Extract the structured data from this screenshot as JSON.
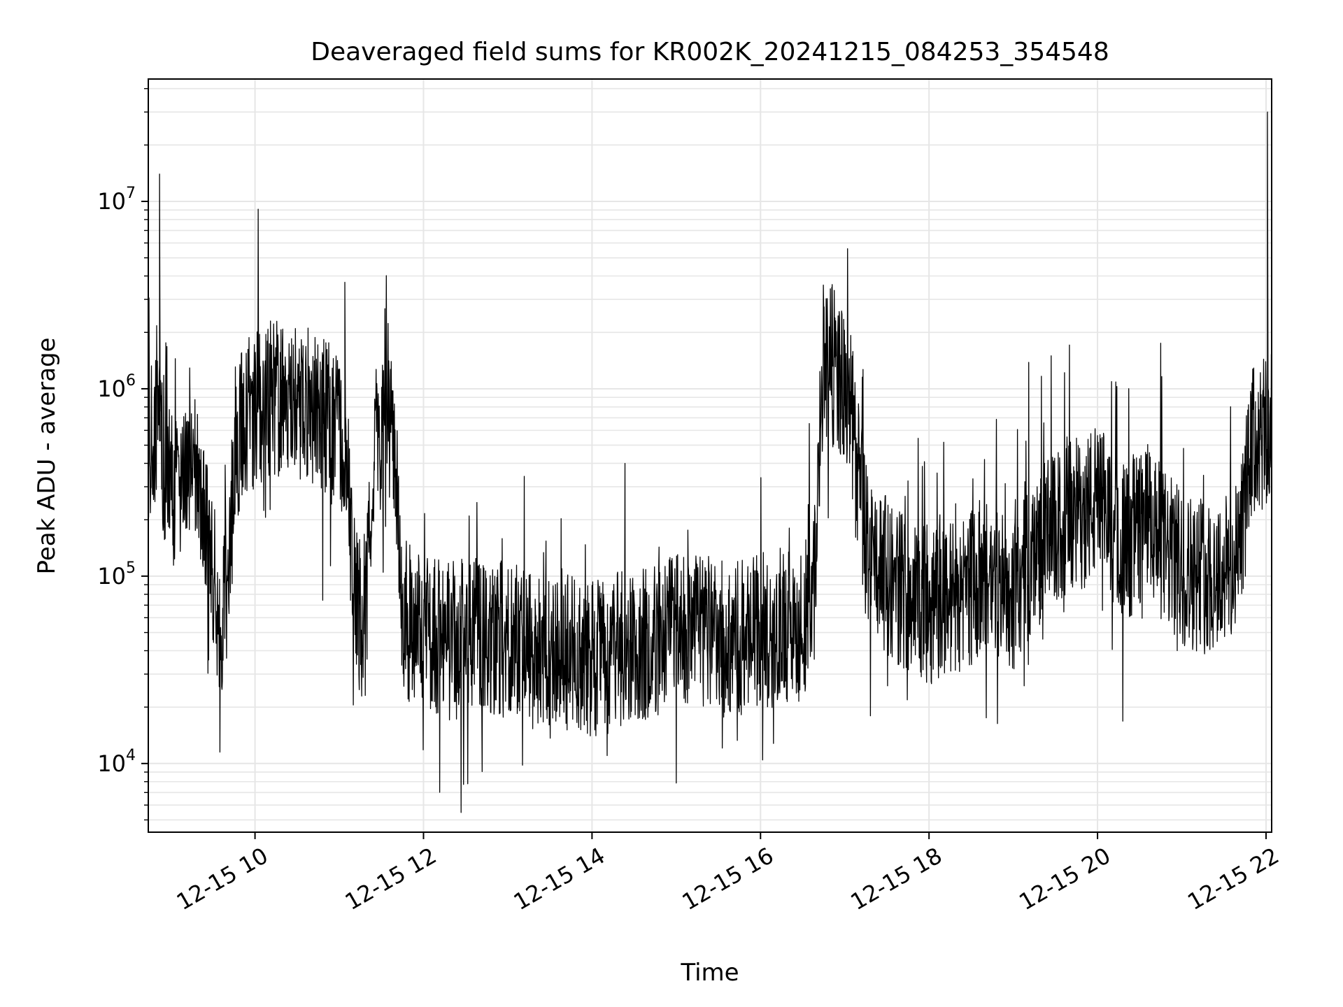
{
  "chart_data": {
    "type": "line",
    "title": "Deaveraged field sums for KR002K_20241215_084253_354548",
    "xlabel": "Time",
    "ylabel": "Peak ADU - average",
    "y_scale": "log",
    "xlim": [
      "2024-12-15 08:44",
      "2024-12-15 22:04"
    ],
    "ylim": [
      4300,
      45000000
    ],
    "x_ticks": [
      {
        "value": "2024-12-15 10:00",
        "label": "12-15 10"
      },
      {
        "value": "2024-12-15 12:00",
        "label": "12-15 12"
      },
      {
        "value": "2024-12-15 14:00",
        "label": "12-15 14"
      },
      {
        "value": "2024-12-15 16:00",
        "label": "12-15 16"
      },
      {
        "value": "2024-12-15 18:00",
        "label": "12-15 18"
      },
      {
        "value": "2024-12-15 20:00",
        "label": "12-15 20"
      },
      {
        "value": "2024-12-15 22:00",
        "label": "12-15 22"
      }
    ],
    "y_ticks": [
      {
        "value": 10000,
        "base": "10",
        "exp": "4"
      },
      {
        "value": 100000,
        "base": "10",
        "exp": "5"
      },
      {
        "value": 1000000,
        "base": "10",
        "exp": "6"
      },
      {
        "value": 10000000,
        "base": "10",
        "exp": "7"
      }
    ],
    "grid": true,
    "line_color": "#000000",
    "grid_color": "#e6e6e6",
    "series": [
      {
        "x": [
          "2024-12-15 08:44",
          "2024-12-15 08:50",
          "2024-12-15 08:56",
          "2024-12-15 09:00",
          "2024-12-15 09:04",
          "2024-12-15 09:08",
          "2024-12-15 09:12",
          "2024-12-15 09:16",
          "2024-12-15 09:20",
          "2024-12-15 09:24",
          "2024-12-15 09:28",
          "2024-12-15 09:32",
          "2024-12-15 09:36",
          "2024-12-15 09:40",
          "2024-12-15 09:45",
          "2024-12-15 09:50",
          "2024-12-15 09:55",
          "2024-12-15 10:00",
          "2024-12-15 10:10",
          "2024-12-15 10:20",
          "2024-12-15 10:30",
          "2024-12-15 10:40",
          "2024-12-15 10:50",
          "2024-12-15 11:00",
          "2024-12-15 11:05",
          "2024-12-15 11:10",
          "2024-12-15 11:15",
          "2024-12-15 11:20",
          "2024-12-15 11:25",
          "2024-12-15 11:30",
          "2024-12-15 11:35",
          "2024-12-15 11:40",
          "2024-12-15 11:45",
          "2024-12-15 12:00",
          "2024-12-15 12:20",
          "2024-12-15 12:40",
          "2024-12-15 13:00",
          "2024-12-15 13:20",
          "2024-12-15 13:40",
          "2024-12-15 14:00",
          "2024-12-15 14:20",
          "2024-12-15 14:40",
          "2024-12-15 15:00",
          "2024-12-15 15:20",
          "2024-12-15 15:40",
          "2024-12-15 16:00",
          "2024-12-15 16:20",
          "2024-12-15 16:30",
          "2024-12-15 16:38",
          "2024-12-15 16:45",
          "2024-12-15 16:55",
          "2024-12-15 17:05",
          "2024-12-15 17:15",
          "2024-12-15 17:30",
          "2024-12-15 17:45",
          "2024-12-15 18:00",
          "2024-12-15 18:20",
          "2024-12-15 18:40",
          "2024-12-15 19:00",
          "2024-12-15 19:20",
          "2024-12-15 19:40",
          "2024-12-15 20:00",
          "2024-12-15 20:20",
          "2024-12-15 20:35",
          "2024-12-15 20:45",
          "2024-12-15 21:00",
          "2024-12-15 21:20",
          "2024-12-15 21:35",
          "2024-12-15 21:40",
          "2024-12-15 21:50",
          "2024-12-15 22:00",
          "2024-12-15 22:04"
        ],
        "y": [
          500000,
          600000,
          400000,
          300000,
          250000,
          350000,
          400000,
          500000,
          400000,
          200000,
          120000,
          80000,
          60000,
          80000,
          500000,
          600000,
          700000,
          800000,
          900000,
          900000,
          850000,
          800000,
          700000,
          600000,
          500000,
          100000,
          60000,
          90000,
          500000,
          600000,
          700000,
          500000,
          60000,
          50000,
          45000,
          50000,
          45000,
          40000,
          40000,
          35000,
          40000,
          45000,
          50000,
          50000,
          45000,
          50000,
          55000,
          60000,
          80000,
          1500000,
          1200000,
          700000,
          150000,
          100000,
          80000,
          70000,
          80000,
          100000,
          80000,
          150000,
          200000,
          250000,
          150000,
          200000,
          150000,
          110000,
          100000,
          110000,
          120000,
          500000,
          550000,
          500000
        ]
      }
    ]
  }
}
